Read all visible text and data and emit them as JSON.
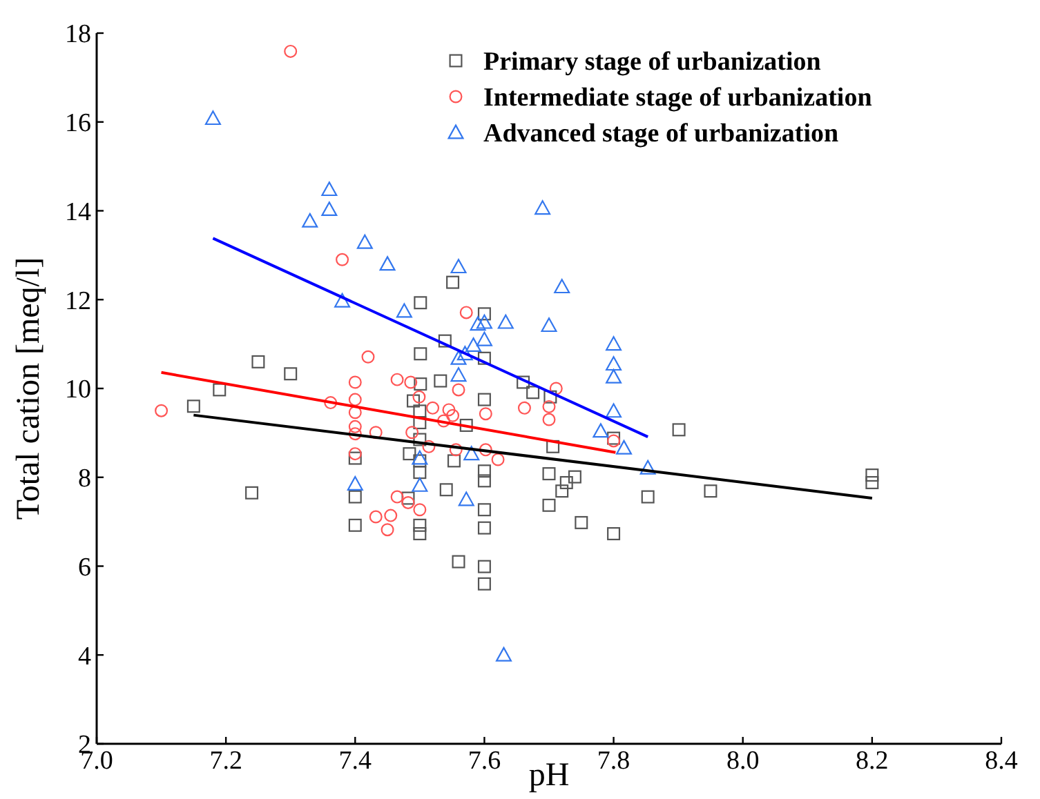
{
  "chart_data": {
    "type": "scatter",
    "xlabel": "pH",
    "ylabel": "Total cation [meq/l]",
    "xlim": [
      7.0,
      8.4
    ],
    "ylim": [
      2,
      18
    ],
    "xticks": [
      {
        "value": 7.0,
        "label": "7.0"
      },
      {
        "value": 7.2,
        "label": "7.2"
      },
      {
        "value": 7.4,
        "label": "7.4"
      },
      {
        "value": 7.6,
        "label": "7.6"
      },
      {
        "value": 7.8,
        "label": "7.8"
      },
      {
        "value": 8.0,
        "label": "8.0"
      },
      {
        "value": 8.2,
        "label": "8.2"
      },
      {
        "value": 8.4,
        "label": "8.4"
      }
    ],
    "yticks": [
      2,
      4,
      6,
      8,
      10,
      12,
      14,
      16,
      18
    ],
    "legend": "top right",
    "grid": false,
    "series": [
      {
        "name": "Primary stage of urbanization",
        "color": "#555555",
        "marker": "square",
        "x": [
          7.15,
          7.19,
          7.25,
          7.3,
          7.24,
          7.551,
          7.501,
          7.6,
          7.539,
          7.501,
          7.6,
          7.532,
          7.66,
          7.675,
          7.702,
          7.501,
          7.49,
          7.5,
          7.6,
          7.5,
          7.572,
          7.706,
          7.5,
          7.484,
          7.553,
          7.4,
          7.5,
          7.5,
          7.6,
          7.6,
          7.7,
          7.72,
          7.727,
          7.4,
          7.482,
          7.541,
          7.6,
          7.7,
          7.4,
          7.5,
          7.5,
          7.6,
          7.56,
          7.6,
          7.6,
          7.901,
          7.8,
          7.74,
          7.75,
          7.8,
          7.853,
          7.95,
          8.2,
          8.2
        ],
        "values": [
          9.6,
          9.97,
          10.6,
          10.33,
          7.65,
          12.39,
          11.93,
          11.68,
          11.07,
          10.78,
          10.68,
          10.17,
          10.14,
          9.91,
          9.81,
          10.1,
          9.72,
          9.49,
          9.75,
          9.23,
          9.17,
          8.69,
          8.85,
          8.53,
          8.37,
          8.43,
          8.37,
          8.11,
          8.14,
          7.92,
          8.08,
          7.69,
          7.88,
          7.56,
          7.53,
          7.72,
          7.27,
          7.37,
          6.92,
          6.92,
          6.73,
          6.86,
          6.1,
          5.99,
          5.6,
          9.07,
          8.88,
          8.01,
          6.98,
          6.73,
          7.56,
          7.69,
          8.05,
          7.88
        ]
      },
      {
        "name": "Intermediate stage of urbanization",
        "color": "#ff5555",
        "marker": "circle",
        "x": [
          7.1,
          7.3,
          7.38,
          7.42,
          7.4,
          7.465,
          7.486,
          7.572,
          7.362,
          7.4,
          7.4,
          7.499,
          7.52,
          7.545,
          7.551,
          7.56,
          7.602,
          7.662,
          7.711,
          7.7,
          7.7,
          7.537,
          7.4,
          7.4,
          7.432,
          7.488,
          7.602,
          7.621,
          7.556,
          7.514,
          7.4,
          7.465,
          7.482,
          7.5,
          7.455,
          7.432,
          7.45,
          7.8
        ],
        "values": [
          9.5,
          17.59,
          12.9,
          10.71,
          10.14,
          10.2,
          10.14,
          11.71,
          9.68,
          9.75,
          9.46,
          9.81,
          9.56,
          9.52,
          9.39,
          9.97,
          9.43,
          9.56,
          10.0,
          9.59,
          9.3,
          9.27,
          9.14,
          8.98,
          9.01,
          9.01,
          8.62,
          8.4,
          8.62,
          8.69,
          8.53,
          7.56,
          7.43,
          7.27,
          7.14,
          7.11,
          6.82,
          8.82
        ]
      },
      {
        "name": "Advanced stage of urbanization",
        "color": "#3377ee",
        "marker": "triangle",
        "x": [
          7.18,
          7.36,
          7.36,
          7.33,
          7.415,
          7.45,
          7.38,
          7.476,
          7.56,
          7.69,
          7.72,
          7.633,
          7.7,
          7.59,
          7.6,
          7.6,
          7.583,
          7.56,
          7.57,
          7.56,
          7.5,
          7.58,
          7.5,
          7.4,
          7.572,
          7.8,
          7.8,
          7.8,
          7.8,
          7.78,
          7.816,
          7.853,
          7.63
        ],
        "values": [
          16.08,
          14.48,
          14.03,
          13.77,
          13.29,
          12.8,
          11.97,
          11.74,
          12.74,
          14.06,
          12.29,
          11.49,
          11.42,
          11.45,
          11.49,
          11.1,
          10.97,
          10.68,
          10.78,
          10.3,
          8.43,
          8.53,
          7.82,
          7.85,
          7.5,
          11.0,
          10.55,
          10.26,
          9.49,
          9.04,
          8.66,
          8.21,
          4.0
        ]
      },
      {
        "type": "line",
        "color": "#000000",
        "x": [
          7.15,
          8.2
        ],
        "values": [
          9.4,
          7.53
        ]
      },
      {
        "type": "line",
        "color": "#ff0000",
        "x": [
          7.1,
          7.803
        ],
        "values": [
          10.36,
          8.56
        ]
      },
      {
        "type": "line",
        "color": "#0000ff",
        "x": [
          7.18,
          7.853
        ],
        "values": [
          13.38,
          8.91
        ]
      }
    ]
  }
}
